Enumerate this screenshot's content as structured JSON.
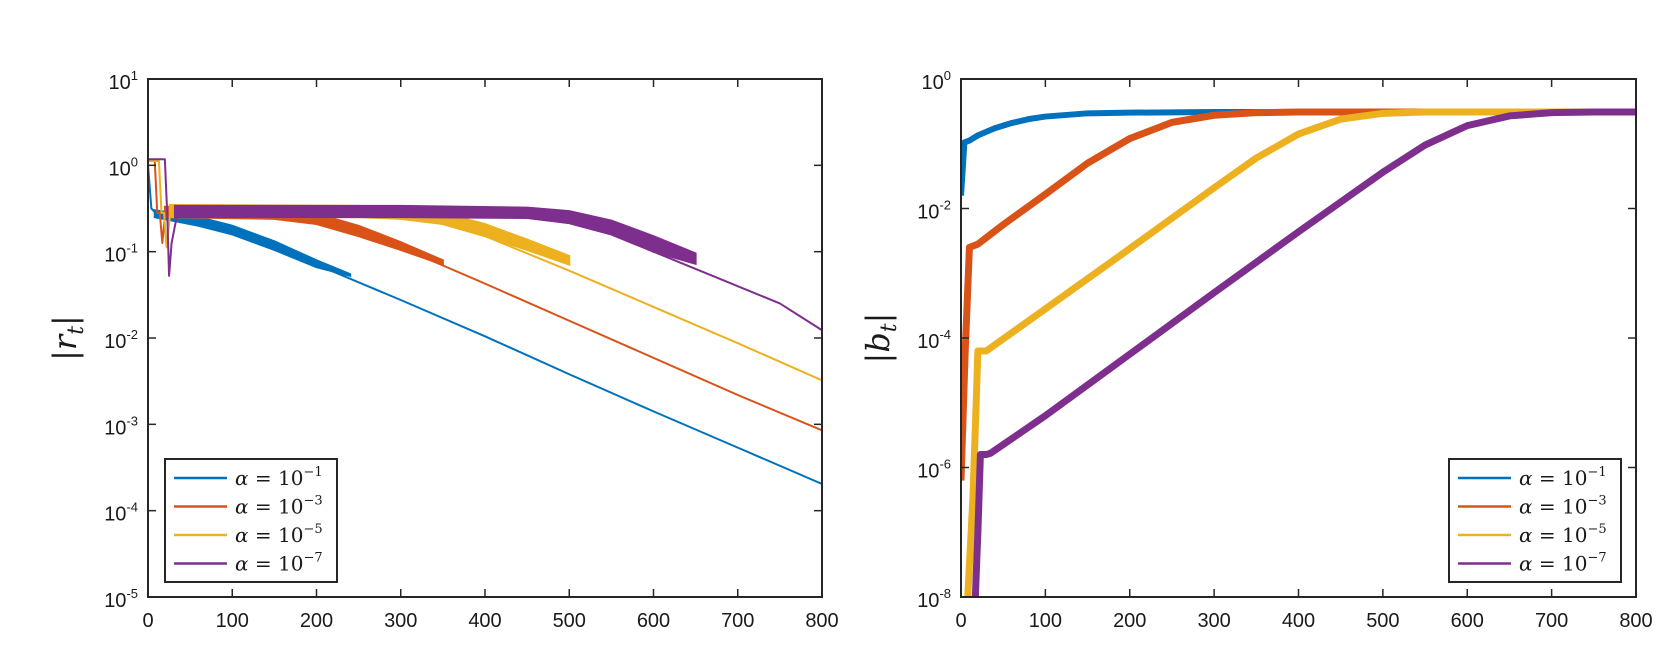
{
  "chart_data": [
    {
      "id": "left",
      "type": "line",
      "ylabel": "|r_t|",
      "ylabel_main": "|r",
      "ylabel_sub": "t",
      "ylabel_end": "|",
      "yscale": "log",
      "xlim": [
        0,
        800
      ],
      "ylim_log10": [
        -5,
        1
      ],
      "xticks": [
        0,
        100,
        200,
        300,
        400,
        500,
        600,
        700,
        800
      ],
      "xtick_labels": [
        "0",
        "100",
        "200",
        "300",
        "400",
        "500",
        "600",
        "700",
        "800"
      ],
      "ytick_exponents": [
        1,
        0,
        -1,
        -2,
        -3,
        -4,
        -5
      ],
      "ytick_base": "10",
      "ytick_exp_labels": [
        "1",
        "0",
        "-1",
        "-2",
        "-3",
        "-4",
        "-5"
      ],
      "legend_location": "bottom-left",
      "series": [
        {
          "name": "α = 10^-1",
          "alpha_exp": "−1",
          "color": "#0072BD",
          "line": [
            [
              0,
              0.0
            ],
            [
              4,
              -0.5
            ],
            [
              10,
              -0.56
            ],
            [
              20,
              -0.6
            ],
            [
              60,
              -0.66
            ],
            [
              100,
              -0.77
            ],
            [
              150,
              -0.95
            ],
            [
              200,
              -1.15
            ],
            [
              300,
              -1.56
            ],
            [
              400,
              -1.98
            ],
            [
              500,
              -2.42
            ],
            [
              600,
              -2.85
            ],
            [
              700,
              -3.27
            ],
            [
              800,
              -3.69
            ]
          ],
          "band_upper": [
            [
              8,
              -0.52
            ],
            [
              60,
              -0.6
            ],
            [
              100,
              -0.7
            ],
            [
              150,
              -0.88
            ],
            [
              200,
              -1.1
            ],
            [
              240,
              -1.26
            ]
          ],
          "band_lower": [
            [
              8,
              -0.6
            ],
            [
              60,
              -0.7
            ],
            [
              100,
              -0.8
            ],
            [
              150,
              -0.98
            ],
            [
              200,
              -1.18
            ],
            [
              240,
              -1.28
            ]
          ]
        },
        {
          "name": "α = 10^-3",
          "alpha_exp": "−3",
          "color": "#D95319",
          "line": [
            [
              0,
              0.05
            ],
            [
              8,
              0.05
            ],
            [
              11,
              -0.55
            ],
            [
              14,
              -0.55
            ],
            [
              17,
              -0.9
            ],
            [
              21,
              -0.5
            ],
            [
              100,
              -0.56
            ],
            [
              200,
              -0.66
            ],
            [
              250,
              -0.78
            ],
            [
              300,
              -0.95
            ],
            [
              400,
              -1.37
            ],
            [
              500,
              -1.8
            ],
            [
              600,
              -2.23
            ],
            [
              700,
              -2.66
            ],
            [
              800,
              -3.07
            ]
          ],
          "band_upper": [
            [
              20,
              -0.48
            ],
            [
              150,
              -0.5
            ],
            [
              200,
              -0.56
            ],
            [
              250,
              -0.7
            ],
            [
              300,
              -0.89
            ],
            [
              350,
              -1.1
            ]
          ],
          "band_lower": [
            [
              20,
              -0.6
            ],
            [
              150,
              -0.62
            ],
            [
              200,
              -0.68
            ],
            [
              250,
              -0.82
            ],
            [
              300,
              -0.98
            ],
            [
              350,
              -1.15
            ]
          ]
        },
        {
          "name": "α = 10^-5",
          "alpha_exp": "−5",
          "color": "#EDB120",
          "line": [
            [
              0,
              0.05
            ],
            [
              13,
              0.05
            ],
            [
              16,
              -0.55
            ],
            [
              19,
              -0.55
            ],
            [
              22,
              -0.95
            ],
            [
              27,
              -0.5
            ],
            [
              200,
              -0.56
            ],
            [
              300,
              -0.6
            ],
            [
              350,
              -0.68
            ],
            [
              400,
              -0.82
            ],
            [
              500,
              -1.22
            ],
            [
              600,
              -1.64
            ],
            [
              700,
              -2.06
            ],
            [
              800,
              -2.49
            ]
          ],
          "band_upper": [
            [
              26,
              -0.46
            ],
            [
              250,
              -0.47
            ],
            [
              300,
              -0.49
            ],
            [
              350,
              -0.55
            ],
            [
              400,
              -0.68
            ],
            [
              450,
              -0.86
            ],
            [
              500,
              -1.05
            ]
          ],
          "band_lower": [
            [
              26,
              -0.6
            ],
            [
              250,
              -0.6
            ],
            [
              300,
              -0.62
            ],
            [
              350,
              -0.68
            ],
            [
              400,
              -0.82
            ],
            [
              450,
              -0.98
            ],
            [
              500,
              -1.15
            ]
          ]
        },
        {
          "name": "α = 10^-7",
          "alpha_exp": "−7",
          "color": "#7E2F8E",
          "line": [
            [
              0,
              0.07
            ],
            [
              20,
              0.07
            ],
            [
              23,
              -0.6
            ],
            [
              25,
              -1.28
            ],
            [
              28,
              -0.9
            ],
            [
              35,
              -0.55
            ],
            [
              300,
              -0.56
            ],
            [
              450,
              -0.6
            ],
            [
              500,
              -0.67
            ],
            [
              550,
              -0.8
            ],
            [
              600,
              -1.0
            ],
            [
              650,
              -1.2
            ],
            [
              700,
              -1.4
            ],
            [
              750,
              -1.6
            ],
            [
              800,
              -1.91
            ]
          ],
          "band_upper": [
            [
              32,
              -0.47
            ],
            [
              300,
              -0.47
            ],
            [
              450,
              -0.49
            ],
            [
              500,
              -0.53
            ],
            [
              550,
              -0.64
            ],
            [
              600,
              -0.82
            ],
            [
              650,
              -1.02
            ]
          ],
          "band_lower": [
            [
              32,
              -0.6
            ],
            [
              300,
              -0.6
            ],
            [
              450,
              -0.61
            ],
            [
              500,
              -0.67
            ],
            [
              550,
              -0.8
            ],
            [
              600,
              -1.0
            ],
            [
              650,
              -1.14
            ]
          ]
        }
      ]
    },
    {
      "id": "right",
      "type": "line",
      "ylabel": "|b_t|",
      "ylabel_main": "|b",
      "ylabel_sub": "t",
      "ylabel_end": "|",
      "yscale": "log",
      "xlim": [
        0,
        800
      ],
      "ylim_log10": [
        -8,
        0
      ],
      "xticks": [
        0,
        100,
        200,
        300,
        400,
        500,
        600,
        700,
        800
      ],
      "xtick_labels": [
        "0",
        "100",
        "200",
        "300",
        "400",
        "500",
        "600",
        "700",
        "800"
      ],
      "ytick_exponents": [
        0,
        -2,
        -4,
        -6,
        -8
      ],
      "ytick_base": "10",
      "ytick_exp_labels": [
        "0",
        "-2",
        "-4",
        "-6",
        "-8"
      ],
      "legend_location": "bottom-right",
      "series": [
        {
          "name": "α = 10^-1",
          "alpha_exp": "−1",
          "color": "#0072BD",
          "width": 6,
          "points": [
            [
              0,
              -1.8
            ],
            [
              2,
              -1.4
            ],
            [
              4,
              -0.98
            ],
            [
              10,
              -0.95
            ],
            [
              20,
              -0.87
            ],
            [
              40,
              -0.76
            ],
            [
              60,
              -0.68
            ],
            [
              80,
              -0.62
            ],
            [
              100,
              -0.58
            ],
            [
              150,
              -0.53
            ],
            [
              200,
              -0.52
            ],
            [
              300,
              -0.51
            ],
            [
              400,
              -0.51
            ],
            [
              500,
              -0.51
            ],
            [
              600,
              -0.51
            ],
            [
              700,
              -0.51
            ],
            [
              800,
              -0.51
            ]
          ]
        },
        {
          "name": "α = 10^-3",
          "alpha_exp": "−3",
          "color": "#D95319",
          "width": 7,
          "points": [
            [
              0,
              -6.2
            ],
            [
              5,
              -4.2
            ],
            [
              10,
              -2.6
            ],
            [
              20,
              -2.55
            ],
            [
              50,
              -2.25
            ],
            [
              100,
              -1.78
            ],
            [
              150,
              -1.3
            ],
            [
              200,
              -0.92
            ],
            [
              250,
              -0.67
            ],
            [
              300,
              -0.56
            ],
            [
              350,
              -0.52
            ],
            [
              400,
              -0.51
            ],
            [
              500,
              -0.51
            ],
            [
              600,
              -0.51
            ],
            [
              700,
              -0.51
            ],
            [
              800,
              -0.51
            ]
          ]
        },
        {
          "name": "α = 10^-5",
          "alpha_exp": "−5",
          "color": "#EDB120",
          "width": 7,
          "points": [
            [
              8,
              -8.0
            ],
            [
              14,
              -6.5
            ],
            [
              18,
              -5.0
            ],
            [
              20,
              -4.2
            ],
            [
              25,
              -4.2
            ],
            [
              30,
              -4.2
            ],
            [
              100,
              -3.55
            ],
            [
              200,
              -2.62
            ],
            [
              300,
              -1.68
            ],
            [
              350,
              -1.22
            ],
            [
              400,
              -0.85
            ],
            [
              450,
              -0.62
            ],
            [
              500,
              -0.53
            ],
            [
              550,
              -0.51
            ],
            [
              600,
              -0.51
            ],
            [
              700,
              -0.51
            ],
            [
              800,
              -0.51
            ]
          ]
        },
        {
          "name": "α = 10^-7",
          "alpha_exp": "−7",
          "color": "#7E2F8E",
          "width": 7,
          "points": [
            [
              17,
              -8.0
            ],
            [
              20,
              -7.0
            ],
            [
              23,
              -5.8
            ],
            [
              30,
              -5.8
            ],
            [
              35,
              -5.78
            ],
            [
              100,
              -5.2
            ],
            [
              200,
              -4.25
            ],
            [
              300,
              -3.3
            ],
            [
              400,
              -2.36
            ],
            [
              500,
              -1.44
            ],
            [
              550,
              -1.02
            ],
            [
              600,
              -0.72
            ],
            [
              650,
              -0.57
            ],
            [
              700,
              -0.52
            ],
            [
              750,
              -0.51
            ],
            [
              800,
              -0.51
            ]
          ]
        }
      ]
    }
  ]
}
